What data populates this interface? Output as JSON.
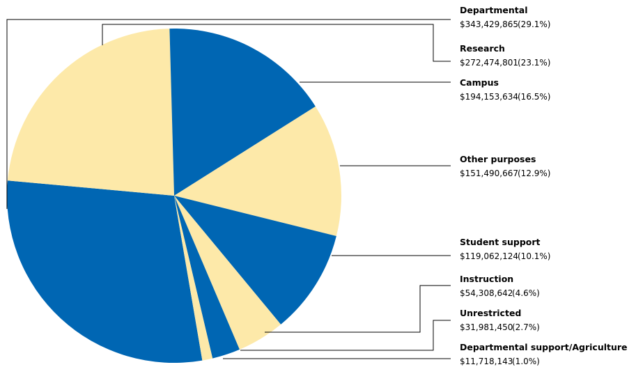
{
  "chart_data": {
    "type": "pie",
    "categories": [
      "Departmental",
      "Research",
      "Campus",
      "Other purposes",
      "Student support",
      "Instruction",
      "Unrestricted",
      "Departmental support/Agriculture"
    ],
    "values": [
      343429865,
      272474801,
      194153634,
      151490667,
      119062124,
      54308642,
      31981450,
      11718143
    ],
    "value_labels": [
      "$343,429,865",
      "$272,474,801",
      "$194,153,634",
      "$151,490,667",
      "$119,062,124",
      "$54,308,642",
      "$31,981,450",
      "$11,718,143"
    ],
    "percent_labels": [
      "(29.1%)",
      "(23.1%)",
      "(16.5%)",
      "(12.9%)",
      "(10.1%)",
      "(4.6%)",
      "(2.7%)",
      "(1.0%)"
    ],
    "colors": [
      "#0066b3",
      "#fde9a9",
      "#0066b3",
      "#fde9a9",
      "#0066b3",
      "#fde9a9",
      "#0066b3",
      "#fde9a9"
    ]
  }
}
